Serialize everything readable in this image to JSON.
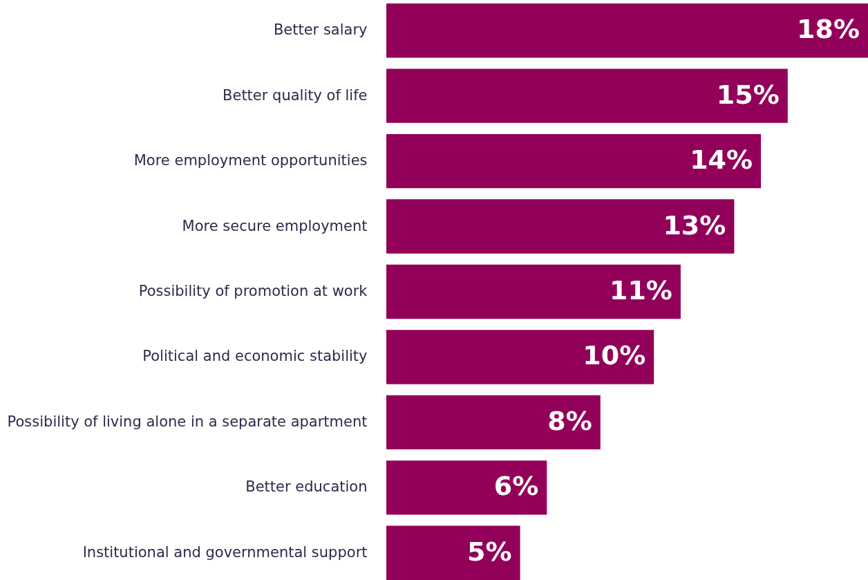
{
  "chart_data": {
    "type": "bar",
    "orientation": "horizontal",
    "value_labels": [
      "18%",
      "15%",
      "14%",
      "13%",
      "11%",
      "10%",
      "8%",
      "6%",
      "5%"
    ],
    "color": "#93005a",
    "categories": [
      "Better salary",
      "Better quality of life",
      "More employment opportunities",
      "More secure employment",
      "Possibility of promotion at work",
      "Political and economic stability",
      "Possibility of living alone in a separate apartment",
      "Better education",
      "Institutional and governmental support"
    ],
    "values": [
      18,
      15,
      14,
      13,
      11,
      10,
      8,
      6,
      5
    ]
  }
}
